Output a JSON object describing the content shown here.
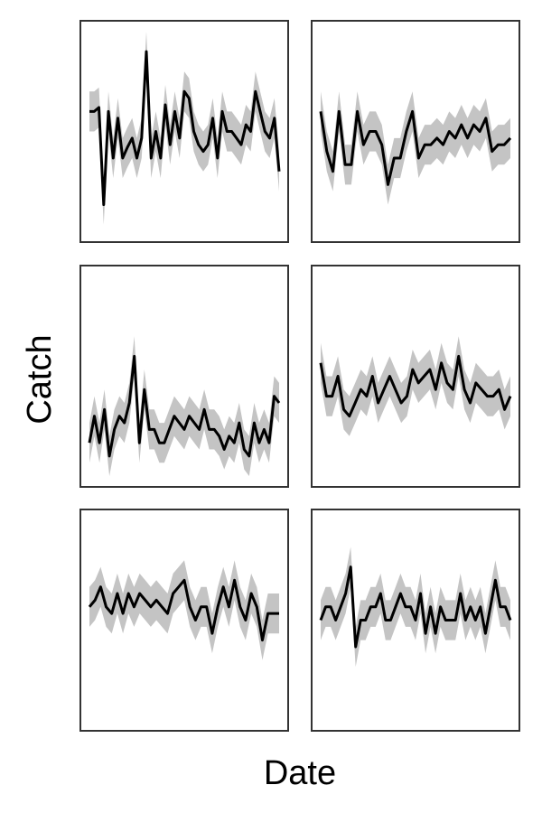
{
  "chart_data": {
    "type": "line",
    "layout": {
      "rows": 3,
      "cols": 2
    },
    "xlabel": "Date",
    "ylabel": "Catch",
    "grid": false,
    "legend": "none",
    "colors": {
      "line": "#000000",
      "band": "#c4c4c4",
      "frame": "#333333"
    },
    "panels": [
      {
        "name": "",
        "y": [
          0.45,
          0.45,
          0.48,
          -0.25,
          0.45,
          0.1,
          0.4,
          0.1,
          0.18,
          0.25,
          0.1,
          0.25,
          0.9,
          0.1,
          0.3,
          0.1,
          0.5,
          0.2,
          0.45,
          0.25,
          0.6,
          0.55,
          0.3,
          0.2,
          0.15,
          0.2,
          0.4,
          0.1,
          0.45,
          0.3,
          0.3,
          0.25,
          0.2,
          0.35,
          0.3,
          0.6,
          0.45,
          0.3,
          0.25,
          0.4,
          0.0
        ],
        "low": [
          0.3,
          0.3,
          0.33,
          -0.4,
          0.3,
          -0.05,
          0.25,
          -0.05,
          0.03,
          0.1,
          -0.05,
          0.1,
          0.75,
          -0.05,
          0.15,
          -0.05,
          0.35,
          0.05,
          0.3,
          0.1,
          0.45,
          0.4,
          0.15,
          0.05,
          0.0,
          0.05,
          0.25,
          -0.05,
          0.3,
          0.15,
          0.15,
          0.1,
          0.05,
          0.2,
          0.15,
          0.45,
          0.3,
          0.15,
          0.1,
          0.25,
          -0.15
        ],
        "high": [
          0.6,
          0.6,
          0.63,
          -0.1,
          0.6,
          0.25,
          0.55,
          0.25,
          0.33,
          0.4,
          0.25,
          0.4,
          1.05,
          0.25,
          0.45,
          0.25,
          0.65,
          0.35,
          0.6,
          0.4,
          0.75,
          0.7,
          0.45,
          0.35,
          0.3,
          0.35,
          0.55,
          0.25,
          0.6,
          0.45,
          0.45,
          0.4,
          0.35,
          0.5,
          0.45,
          0.75,
          0.6,
          0.45,
          0.4,
          0.55,
          0.15
        ]
      },
      {
        "name": "",
        "y": [
          0.45,
          0.15,
          0.0,
          0.45,
          0.05,
          0.05,
          0.45,
          0.2,
          0.3,
          0.3,
          0.2,
          -0.1,
          0.1,
          0.1,
          0.3,
          0.45,
          0.1,
          0.2,
          0.2,
          0.25,
          0.2,
          0.3,
          0.25,
          0.35,
          0.25,
          0.35,
          0.3,
          0.4,
          0.15,
          0.2,
          0.2,
          0.25
        ],
        "low": [
          0.3,
          0.0,
          -0.15,
          0.3,
          -0.1,
          -0.1,
          0.3,
          0.05,
          0.15,
          0.15,
          0.05,
          -0.25,
          -0.05,
          -0.05,
          0.15,
          0.3,
          -0.05,
          0.05,
          0.05,
          0.1,
          0.05,
          0.15,
          0.1,
          0.2,
          0.1,
          0.2,
          0.15,
          0.25,
          0.0,
          0.05,
          0.05,
          0.1
        ],
        "high": [
          0.6,
          0.3,
          0.15,
          0.6,
          0.2,
          0.2,
          0.6,
          0.35,
          0.45,
          0.45,
          0.35,
          0.05,
          0.25,
          0.25,
          0.45,
          0.6,
          0.25,
          0.35,
          0.35,
          0.4,
          0.35,
          0.45,
          0.4,
          0.5,
          0.4,
          0.5,
          0.45,
          0.55,
          0.3,
          0.35,
          0.35,
          0.4
        ]
      },
      {
        "name": "",
        "y": [
          -0.2,
          0.0,
          -0.2,
          0.05,
          -0.3,
          -0.1,
          0.0,
          -0.05,
          0.1,
          0.45,
          -0.2,
          0.2,
          -0.1,
          -0.1,
          -0.2,
          -0.2,
          -0.1,
          0.0,
          -0.05,
          -0.1,
          0.0,
          -0.05,
          -0.1,
          0.05,
          -0.1,
          -0.1,
          -0.15,
          -0.25,
          -0.15,
          -0.2,
          -0.05,
          -0.25,
          -0.3,
          -0.05,
          -0.2,
          -0.1,
          -0.2,
          0.15,
          0.1
        ],
        "low": [
          -0.35,
          -0.15,
          -0.35,
          -0.1,
          -0.45,
          -0.25,
          -0.15,
          -0.2,
          -0.05,
          0.3,
          -0.35,
          0.05,
          -0.25,
          -0.25,
          -0.35,
          -0.35,
          -0.25,
          -0.15,
          -0.2,
          -0.25,
          -0.15,
          -0.2,
          -0.25,
          -0.1,
          -0.25,
          -0.25,
          -0.3,
          -0.4,
          -0.3,
          -0.35,
          -0.2,
          -0.4,
          -0.45,
          -0.2,
          -0.35,
          -0.25,
          -0.35,
          0.0,
          -0.05
        ],
        "high": [
          -0.05,
          0.15,
          -0.05,
          0.2,
          -0.15,
          0.05,
          0.15,
          0.1,
          0.25,
          0.6,
          -0.05,
          0.35,
          0.05,
          0.05,
          -0.05,
          -0.05,
          0.05,
          0.15,
          0.1,
          0.05,
          0.15,
          0.1,
          0.05,
          0.2,
          0.05,
          0.05,
          0.0,
          -0.1,
          0.0,
          -0.05,
          0.1,
          -0.1,
          -0.15,
          0.1,
          -0.05,
          0.05,
          -0.05,
          0.3,
          0.25
        ]
      },
      {
        "name": "",
        "y": [
          0.4,
          0.15,
          0.15,
          0.3,
          0.05,
          0.0,
          0.1,
          0.2,
          0.15,
          0.3,
          0.1,
          0.2,
          0.3,
          0.2,
          0.1,
          0.15,
          0.35,
          0.25,
          0.3,
          0.35,
          0.2,
          0.4,
          0.25,
          0.2,
          0.45,
          0.2,
          0.1,
          0.25,
          0.2,
          0.15,
          0.15,
          0.2,
          0.05,
          0.15
        ],
        "low": [
          0.25,
          0.0,
          0.0,
          0.15,
          -0.1,
          -0.15,
          -0.05,
          0.05,
          0.0,
          0.15,
          -0.05,
          0.05,
          0.15,
          0.05,
          -0.05,
          0.0,
          0.2,
          0.1,
          0.15,
          0.2,
          0.05,
          0.25,
          0.1,
          0.05,
          0.3,
          0.05,
          -0.05,
          0.1,
          0.05,
          0.0,
          0.0,
          0.05,
          -0.1,
          0.0
        ],
        "high": [
          0.55,
          0.3,
          0.3,
          0.45,
          0.2,
          0.15,
          0.25,
          0.35,
          0.3,
          0.45,
          0.25,
          0.35,
          0.45,
          0.35,
          0.25,
          0.3,
          0.5,
          0.4,
          0.45,
          0.5,
          0.35,
          0.55,
          0.4,
          0.35,
          0.6,
          0.35,
          0.25,
          0.4,
          0.35,
          0.3,
          0.3,
          0.35,
          0.2,
          0.3
        ]
      },
      {
        "name": "",
        "y": [
          0.4,
          0.45,
          0.55,
          0.4,
          0.35,
          0.5,
          0.35,
          0.5,
          0.4,
          0.5,
          0.45,
          0.4,
          0.45,
          0.4,
          0.35,
          0.5,
          0.55,
          0.6,
          0.4,
          0.3,
          0.4,
          0.4,
          0.2,
          0.4,
          0.55,
          0.4,
          0.6,
          0.4,
          0.3,
          0.5,
          0.4,
          0.15,
          0.35,
          0.35,
          0.35
        ],
        "low": [
          0.25,
          0.3,
          0.4,
          0.25,
          0.2,
          0.35,
          0.2,
          0.35,
          0.25,
          0.35,
          0.3,
          0.25,
          0.3,
          0.25,
          0.2,
          0.35,
          0.4,
          0.45,
          0.25,
          0.15,
          0.25,
          0.25,
          0.05,
          0.25,
          0.4,
          0.25,
          0.45,
          0.25,
          0.15,
          0.35,
          0.25,
          0.0,
          0.2,
          0.2,
          0.2
        ],
        "high": [
          0.55,
          0.6,
          0.7,
          0.55,
          0.5,
          0.65,
          0.5,
          0.65,
          0.55,
          0.65,
          0.6,
          0.55,
          0.6,
          0.55,
          0.5,
          0.65,
          0.7,
          0.75,
          0.55,
          0.45,
          0.55,
          0.55,
          0.35,
          0.55,
          0.7,
          0.55,
          0.75,
          0.55,
          0.45,
          0.65,
          0.55,
          0.3,
          0.5,
          0.5,
          0.5
        ]
      },
      {
        "name": "",
        "y": [
          0.3,
          0.4,
          0.4,
          0.3,
          0.4,
          0.5,
          0.7,
          0.1,
          0.3,
          0.3,
          0.4,
          0.4,
          0.5,
          0.3,
          0.3,
          0.4,
          0.5,
          0.4,
          0.4,
          0.3,
          0.5,
          0.2,
          0.4,
          0.2,
          0.4,
          0.3,
          0.3,
          0.3,
          0.5,
          0.3,
          0.4,
          0.3,
          0.4,
          0.2,
          0.4,
          0.6,
          0.4,
          0.4,
          0.3
        ],
        "low": [
          0.15,
          0.25,
          0.25,
          0.15,
          0.25,
          0.35,
          0.55,
          -0.05,
          0.15,
          0.15,
          0.25,
          0.25,
          0.35,
          0.15,
          0.15,
          0.25,
          0.35,
          0.25,
          0.25,
          0.15,
          0.35,
          0.05,
          0.25,
          0.05,
          0.25,
          0.15,
          0.15,
          0.15,
          0.35,
          0.15,
          0.25,
          0.15,
          0.25,
          0.05,
          0.25,
          0.45,
          0.25,
          0.25,
          0.15
        ],
        "high": [
          0.45,
          0.55,
          0.55,
          0.45,
          0.55,
          0.65,
          0.85,
          0.25,
          0.45,
          0.45,
          0.55,
          0.55,
          0.65,
          0.45,
          0.45,
          0.55,
          0.65,
          0.55,
          0.55,
          0.45,
          0.65,
          0.35,
          0.55,
          0.35,
          0.55,
          0.45,
          0.45,
          0.45,
          0.65,
          0.45,
          0.55,
          0.45,
          0.55,
          0.35,
          0.55,
          0.75,
          0.55,
          0.55,
          0.45
        ]
      }
    ]
  }
}
